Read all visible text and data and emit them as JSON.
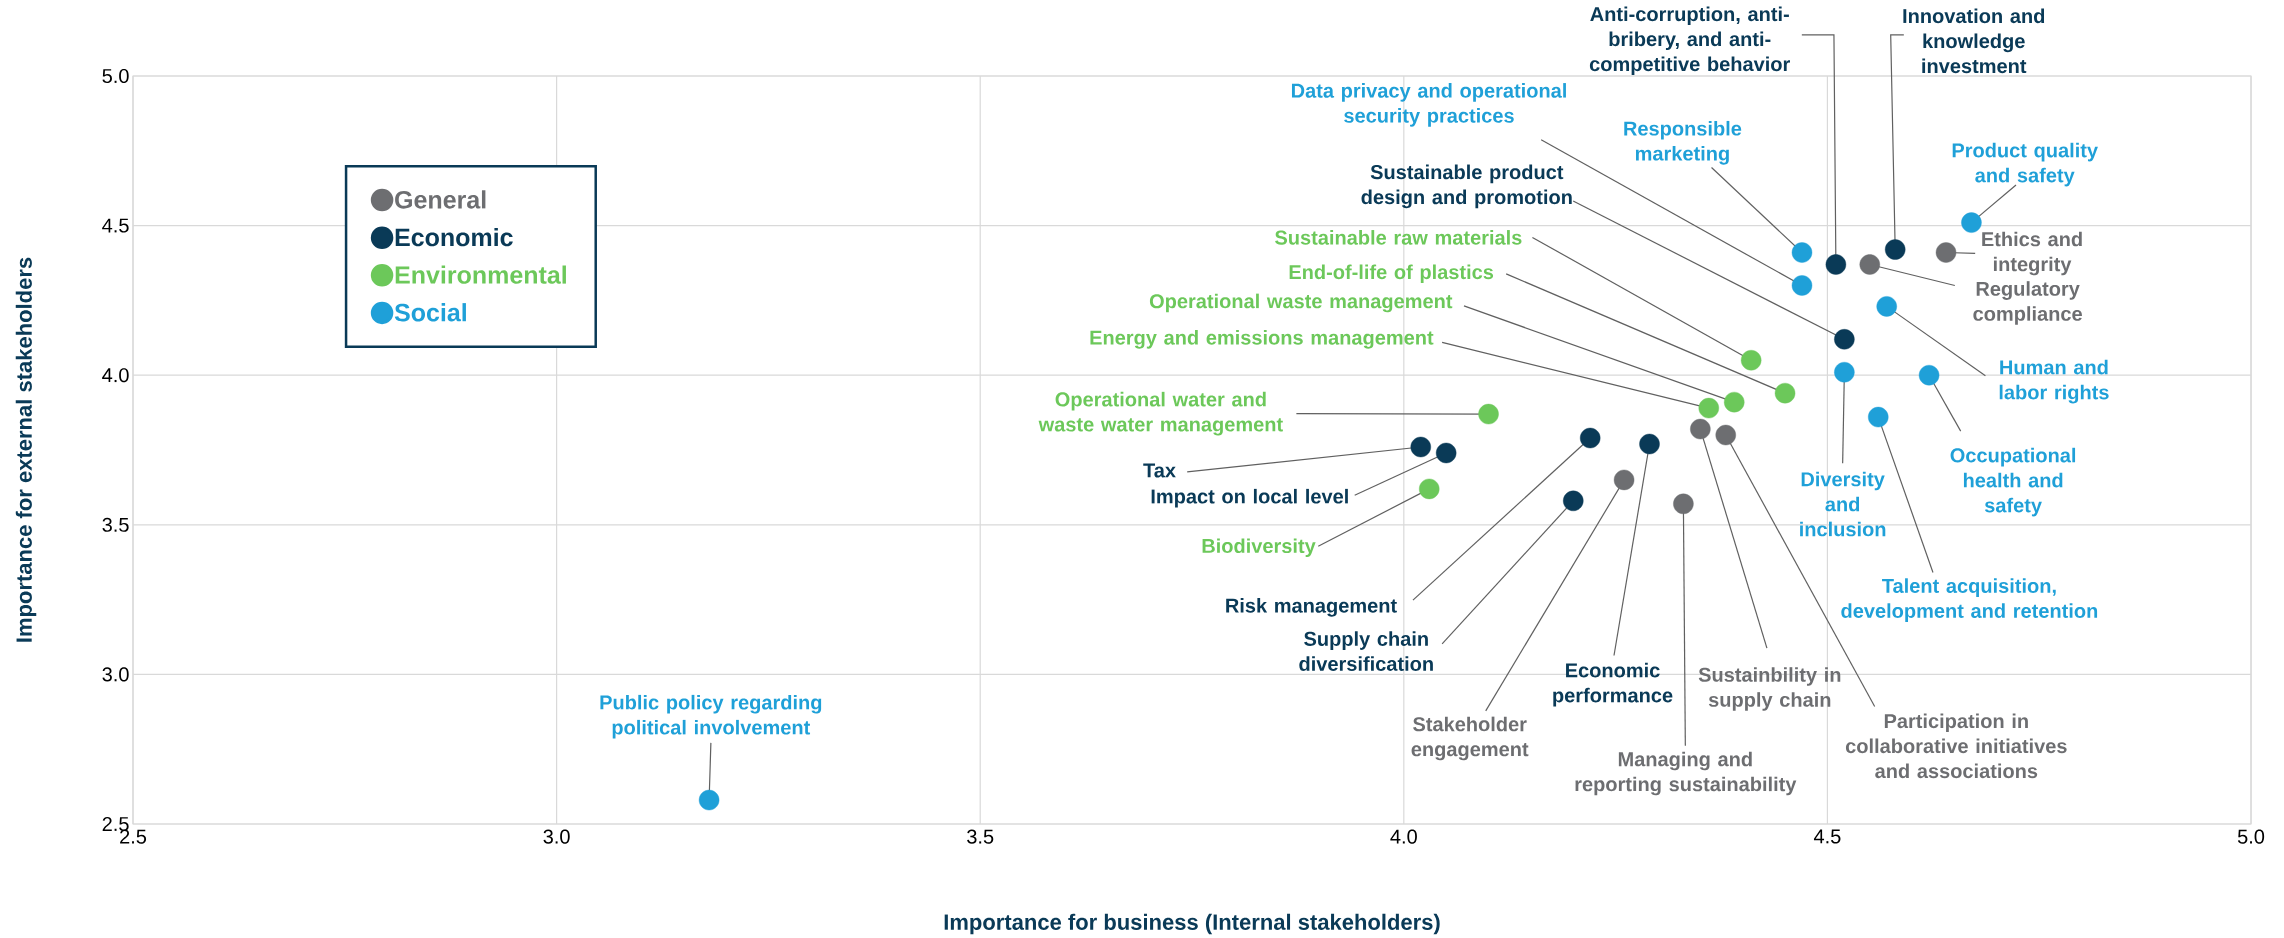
{
  "chart_data": {
    "type": "scatter",
    "xlabel": "Importance for business (Internal stakeholders)",
    "ylabel": "Importance for external stakeholders",
    "xlim": [
      2.5,
      5.0
    ],
    "ylim": [
      2.5,
      5.0
    ],
    "xticks": [
      {
        "value": 2.5,
        "label": "2.5"
      },
      {
        "value": 3.0,
        "label": "3.0"
      },
      {
        "value": 3.5,
        "label": "3.5"
      },
      {
        "value": 4.0,
        "label": "4.0"
      },
      {
        "value": 4.5,
        "label": "4.5"
      },
      {
        "value": 5.0,
        "label": "5.0"
      }
    ],
    "yticks": [
      {
        "value": 2.5,
        "label": "2.5"
      },
      {
        "value": 3.0,
        "label": "3.0"
      },
      {
        "value": 3.5,
        "label": "3.5"
      },
      {
        "value": 4.0,
        "label": "4.0"
      },
      {
        "value": 4.5,
        "label": "4.5"
      },
      {
        "value": 5.0,
        "label": "5.0"
      }
    ],
    "grid": true,
    "legend": "top left",
    "marker": "circle",
    "series": [
      {
        "name": "General",
        "color": "#6d6e71",
        "x": [
          4.64,
          4.55,
          4.26,
          4.33,
          4.35,
          4.38
        ],
        "values": [
          4.41,
          4.37,
          3.65,
          3.57,
          3.82,
          3.8
        ]
      },
      {
        "name": "Economic",
        "color": "#0a3a57",
        "x": [
          4.51,
          4.58,
          4.52,
          4.02,
          4.05,
          4.22,
          4.2,
          4.29
        ],
        "values": [
          4.37,
          4.42,
          4.12,
          3.76,
          3.74,
          3.79,
          3.58,
          3.77
        ]
      },
      {
        "name": "Environmental",
        "color": "#6cc85a",
        "x": [
          4.41,
          4.45,
          4.39,
          4.36,
          4.1,
          4.03
        ],
        "values": [
          4.05,
          3.94,
          3.91,
          3.89,
          3.87,
          3.62
        ]
      },
      {
        "name": "Social",
        "color": "#1fa0d8",
        "x": [
          4.67,
          4.47,
          4.47,
          4.57,
          4.52,
          4.62,
          4.56,
          3.18
        ],
        "values": [
          4.51,
          4.41,
          4.3,
          4.23,
          4.01,
          4.0,
          3.86,
          2.58
        ]
      }
    ],
    "annotations": [
      {
        "text": "Ethics and integrity",
        "x": 4.64,
        "y": 4.41
      },
      {
        "text": "Regulatory compliance",
        "x": 4.55,
        "y": 4.37
      },
      {
        "text": "Stakeholder engagement",
        "x": 4.26,
        "y": 3.65
      },
      {
        "text": "Managing and reporting sustainability",
        "x": 4.33,
        "y": 3.57
      },
      {
        "text": "Sustainbility in supply chain",
        "x": 4.35,
        "y": 3.82
      },
      {
        "text": "Participation in collaborative initiatives and associations",
        "x": 4.38,
        "y": 3.8
      },
      {
        "text": "Anti-corruption, anti-bribery, and anti-competitive behavior",
        "x": 4.51,
        "y": 4.37
      },
      {
        "text": "Innovation and knowledge investment",
        "x": 4.58,
        "y": 4.42
      },
      {
        "text": "Sustainable product design and promotion",
        "x": 4.52,
        "y": 4.12
      },
      {
        "text": "Tax",
        "x": 4.02,
        "y": 3.76
      },
      {
        "text": "Impact on local level",
        "x": 4.05,
        "y": 3.74
      },
      {
        "text": "Risk management",
        "x": 4.22,
        "y": 3.79
      },
      {
        "text": "Supply chain diversification",
        "x": 4.2,
        "y": 3.58
      },
      {
        "text": "Economic performance",
        "x": 4.29,
        "y": 3.77
      },
      {
        "text": "Sustainable raw materials",
        "x": 4.41,
        "y": 4.05
      },
      {
        "text": "End-of-life of plastics",
        "x": 4.45,
        "y": 3.94
      },
      {
        "text": "Operational waste management",
        "x": 4.39,
        "y": 3.91
      },
      {
        "text": "Energy and emissions management",
        "x": 4.36,
        "y": 3.89
      },
      {
        "text": "Operational water and waste water management",
        "x": 4.1,
        "y": 3.87
      },
      {
        "text": "Biodiversity",
        "x": 4.03,
        "y": 3.62
      },
      {
        "text": "Product quality and safety",
        "x": 4.67,
        "y": 4.51
      },
      {
        "text": "Responsible marketing",
        "x": 4.47,
        "y": 4.41
      },
      {
        "text": "Data privacy and operational security practices",
        "x": 4.47,
        "y": 4.3
      },
      {
        "text": "Human and labor rights",
        "x": 4.57,
        "y": 4.23
      },
      {
        "text": "Diversity and inclusion",
        "x": 4.52,
        "y": 4.01
      },
      {
        "text": "Occupational health and safety",
        "x": 4.62,
        "y": 4.0
      },
      {
        "text": "Talent acquisition, development and retention",
        "x": 4.56,
        "y": 3.86
      },
      {
        "text": "Public policy regarding political involvement",
        "x": 3.18,
        "y": 2.58
      }
    ]
  }
}
